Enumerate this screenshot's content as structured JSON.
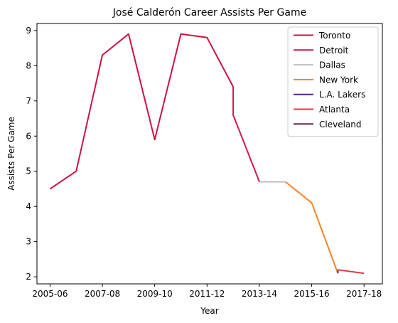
{
  "chart_data": {
    "type": "line",
    "title": "José Calderón  Career Assists Per Game",
    "xlabel": "Year",
    "ylabel": "Assists Per Game",
    "xlim": [
      2005.5,
      2018.7
    ],
    "ylim": [
      1.8,
      9.2
    ],
    "x_ticks": [
      {
        "value": 2006,
        "label": "2005-06"
      },
      {
        "value": 2008,
        "label": "2007-08"
      },
      {
        "value": 2010,
        "label": "2009-10"
      },
      {
        "value": 2012,
        "label": "2011-12"
      },
      {
        "value": 2014,
        "label": "2013-14"
      },
      {
        "value": 2016,
        "label": "2015-16"
      },
      {
        "value": 2018,
        "label": "2017-18"
      }
    ],
    "y_ticks": [
      2,
      3,
      4,
      5,
      6,
      7,
      8,
      9
    ],
    "legend_position": "top-right",
    "series": [
      {
        "name": "Toronto",
        "color": "#CE1141",
        "points": [
          [
            2006,
            4.5
          ],
          [
            2007,
            5.0
          ],
          [
            2008,
            8.3
          ],
          [
            2009,
            8.9
          ],
          [
            2010,
            5.9
          ],
          [
            2011,
            8.9
          ],
          [
            2012,
            8.8
          ],
          [
            2013,
            7.4
          ]
        ]
      },
      {
        "name": "Detroit",
        "color": "#D4174C",
        "points": [
          [
            2013,
            7.4
          ],
          [
            2013,
            6.6
          ],
          [
            2014,
            4.7
          ]
        ]
      },
      {
        "name": "Dallas",
        "color": "#BFC0C2",
        "points": [
          [
            2014,
            4.7
          ],
          [
            2015,
            4.7
          ]
        ]
      },
      {
        "name": "New York",
        "color": "#F58426",
        "points": [
          [
            2015,
            4.7
          ],
          [
            2016,
            4.1
          ],
          [
            2017,
            2.1
          ]
        ]
      },
      {
        "name": "L.A. Lakers",
        "color": "#552583",
        "points": [
          [
            2017,
            2.1
          ],
          [
            2017,
            2.2
          ]
        ]
      },
      {
        "name": "Atlanta",
        "color": "#E03A3E",
        "points": [
          [
            2017,
            2.2
          ],
          [
            2018,
            2.1
          ]
        ]
      },
      {
        "name": "Cleveland",
        "color": "#6F263D",
        "points": [
          [
            2018,
            2.1
          ],
          [
            2018,
            2.1
          ]
        ]
      }
    ]
  }
}
